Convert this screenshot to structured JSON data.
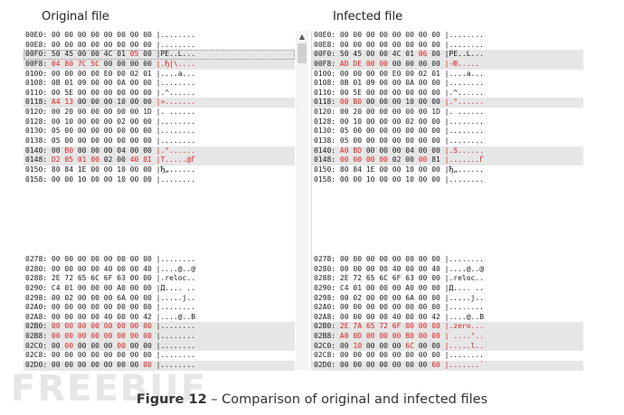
{
  "titles": {
    "original": "Original file",
    "infected": "Infected file"
  },
  "caption": {
    "figure": "Figure 12",
    "text": "Comparison of original and infected files"
  },
  "watermark": "FREEBUF",
  "original": {
    "top": [
      {
        "addr": "00E0:",
        "bytes": [
          "00",
          "00",
          "00",
          "00",
          "00",
          "00",
          "00",
          "00"
        ],
        "ascii": "|........",
        "red": [],
        "hl": false
      },
      {
        "addr": "00E8:",
        "bytes": [
          "00",
          "00",
          "00",
          "00",
          "00",
          "00",
          "00",
          "00"
        ],
        "ascii": "|........",
        "red": [],
        "hl": false
      },
      {
        "addr": "00F0:",
        "bytes": [
          "50",
          "45",
          "00",
          "00",
          "4C",
          "01",
          "05",
          "00"
        ],
        "ascii": "|PE..L...",
        "red": [
          6
        ],
        "hl": true,
        "outline": true
      },
      {
        "addr": "00F8:",
        "bytes": [
          "04",
          "80",
          "7C",
          "5C",
          "00",
          "00",
          "00",
          "00"
        ],
        "ascii": "|.Ђ|\\....",
        "red": [
          0,
          1,
          2,
          3
        ],
        "hl": true,
        "asciiRed": true
      },
      {
        "addr": "0100:",
        "bytes": [
          "00",
          "00",
          "00",
          "00",
          "E0",
          "00",
          "02",
          "01"
        ],
        "ascii": "|....a...",
        "red": [],
        "hl": false
      },
      {
        "addr": "0108:",
        "bytes": [
          "0B",
          "01",
          "09",
          "00",
          "00",
          "0A",
          "00",
          "00"
        ],
        "ascii": "|........",
        "red": [],
        "hl": false
      },
      {
        "addr": "0110:",
        "bytes": [
          "00",
          "5E",
          "00",
          "00",
          "00",
          "00",
          "00",
          "00"
        ],
        "ascii": "|.^......",
        "red": [],
        "hl": false
      },
      {
        "addr": "0118:",
        "bytes": [
          "A4",
          "13",
          "00",
          "00",
          "00",
          "10",
          "00",
          "00"
        ],
        "ascii": "|¤.......",
        "red": [
          0,
          1
        ],
        "hl": true,
        "asciiRed": true
      },
      {
        "addr": "0120:",
        "bytes": [
          "00",
          "20",
          "00",
          "00",
          "00",
          "00",
          "00",
          "1D"
        ],
        "ascii": "|. ......",
        "red": [],
        "hl": false
      },
      {
        "addr": "0128:",
        "bytes": [
          "00",
          "10",
          "00",
          "00",
          "00",
          "02",
          "00",
          "00"
        ],
        "ascii": "|........",
        "red": [],
        "hl": false
      },
      {
        "addr": "0130:",
        "bytes": [
          "05",
          "00",
          "00",
          "00",
          "00",
          "00",
          "00",
          "00"
        ],
        "ascii": "|........",
        "red": [],
        "hl": false
      },
      {
        "addr": "0138:",
        "bytes": [
          "05",
          "00",
          "00",
          "00",
          "00",
          "00",
          "00",
          "00"
        ],
        "ascii": "|........",
        "red": [],
        "hl": false
      },
      {
        "addr": "0140:",
        "bytes": [
          "00",
          "B0",
          "00",
          "00",
          "00",
          "04",
          "00",
          "00"
        ],
        "ascii": "|.°......",
        "red": [
          1
        ],
        "hl": true,
        "asciiRed": true
      },
      {
        "addr": "0148:",
        "bytes": [
          "D2",
          "05",
          "01",
          "00",
          "02",
          "00",
          "40",
          "81"
        ],
        "ascii": "|Т.....@Ѓ",
        "red": [
          0,
          1,
          2,
          3,
          6,
          7
        ],
        "hl": true,
        "asciiRed": true
      },
      {
        "addr": "0150:",
        "bytes": [
          "80",
          "84",
          "1E",
          "00",
          "00",
          "10",
          "00",
          "00"
        ],
        "ascii": "|Ђ„......",
        "red": [],
        "hl": false
      },
      {
        "addr": "0158:",
        "bytes": [
          "00",
          "00",
          "10",
          "00",
          "00",
          "10",
          "00",
          "00"
        ],
        "ascii": "|........",
        "red": [],
        "hl": false
      }
    ],
    "bottom": [
      {
        "addr": "0278:",
        "bytes": [
          "00",
          "00",
          "00",
          "00",
          "00",
          "00",
          "00",
          "00"
        ],
        "ascii": "|........",
        "red": [],
        "hl": false
      },
      {
        "addr": "0280:",
        "bytes": [
          "00",
          "00",
          "00",
          "00",
          "40",
          "00",
          "00",
          "40"
        ],
        "ascii": "|....@..@",
        "red": [],
        "hl": false
      },
      {
        "addr": "0288:",
        "bytes": [
          "2E",
          "72",
          "65",
          "6C",
          "6F",
          "63",
          "00",
          "00"
        ],
        "ascii": "|.reloc..",
        "red": [],
        "hl": false
      },
      {
        "addr": "0290:",
        "bytes": [
          "C4",
          "01",
          "00",
          "00",
          "00",
          "A0",
          "00",
          "00"
        ],
        "ascii": "|Д.... ..",
        "red": [],
        "hl": false
      },
      {
        "addr": "0298:",
        "bytes": [
          "00",
          "02",
          "00",
          "00",
          "00",
          "6A",
          "00",
          "00"
        ],
        "ascii": "|.....j..",
        "red": [],
        "hl": false
      },
      {
        "addr": "02A0:",
        "bytes": [
          "00",
          "00",
          "00",
          "00",
          "00",
          "00",
          "00",
          "00"
        ],
        "ascii": "|........",
        "red": [],
        "hl": false
      },
      {
        "addr": "02A8:",
        "bytes": [
          "00",
          "00",
          "00",
          "00",
          "40",
          "00",
          "00",
          "42"
        ],
        "ascii": "|....@..B",
        "red": [],
        "hl": false
      },
      {
        "addr": "02B0:",
        "bytes": [
          "00",
          "00",
          "00",
          "00",
          "00",
          "00",
          "00",
          "00"
        ],
        "ascii": "|........",
        "red": [
          0,
          1,
          2,
          3,
          4,
          5,
          6,
          7
        ],
        "hl": true
      },
      {
        "addr": "02B8:",
        "bytes": [
          "00",
          "00",
          "00",
          "00",
          "00",
          "00",
          "00",
          "00"
        ],
        "ascii": "|........",
        "red": [
          0,
          1,
          2,
          3,
          4,
          5,
          6,
          7
        ],
        "hl": true
      },
      {
        "addr": "02C0:",
        "bytes": [
          "00",
          "00",
          "00",
          "00",
          "00",
          "00",
          "00",
          "00"
        ],
        "ascii": "|........",
        "red": [
          1,
          5
        ],
        "hl": true
      },
      {
        "addr": "02C8:",
        "bytes": [
          "00",
          "00",
          "00",
          "00",
          "00",
          "00",
          "00",
          "00"
        ],
        "ascii": "|........",
        "red": [],
        "hl": false
      },
      {
        "addr": "02D0:",
        "bytes": [
          "00",
          "00",
          "00",
          "00",
          "00",
          "00",
          "00",
          "00"
        ],
        "ascii": "|........",
        "red": [
          7
        ],
        "hl": true
      }
    ]
  },
  "infected": {
    "top": [
      {
        "addr": "00E0:",
        "bytes": [
          "00",
          "00",
          "00",
          "00",
          "00",
          "00",
          "00",
          "00"
        ],
        "ascii": "|........",
        "red": [],
        "hl": false
      },
      {
        "addr": "00E8:",
        "bytes": [
          "00",
          "00",
          "00",
          "00",
          "00",
          "00",
          "00",
          "00"
        ],
        "ascii": "|........",
        "red": [],
        "hl": false
      },
      {
        "addr": "00F0:",
        "bytes": [
          "50",
          "45",
          "00",
          "00",
          "4C",
          "01",
          "06",
          "00"
        ],
        "ascii": "|PE..L...",
        "red": [
          6
        ],
        "hl": true
      },
      {
        "addr": "00F8:",
        "bytes": [
          "AD",
          "DE",
          "00",
          "00",
          "00",
          "00",
          "00",
          "00"
        ],
        "ascii": "|-Ю.....",
        "red": [
          0,
          1,
          2,
          3
        ],
        "hl": true,
        "asciiRed": true
      },
      {
        "addr": "0100:",
        "bytes": [
          "00",
          "00",
          "00",
          "00",
          "E0",
          "00",
          "02",
          "01"
        ],
        "ascii": "|....a...",
        "red": [],
        "hl": false
      },
      {
        "addr": "0108:",
        "bytes": [
          "0B",
          "01",
          "09",
          "00",
          "00",
          "0A",
          "00",
          "00"
        ],
        "ascii": "|........",
        "red": [],
        "hl": false
      },
      {
        "addr": "0110:",
        "bytes": [
          "00",
          "5E",
          "00",
          "00",
          "00",
          "00",
          "00",
          "00"
        ],
        "ascii": "|.^......",
        "red": [],
        "hl": false
      },
      {
        "addr": "0118:",
        "bytes": [
          "00",
          "B0",
          "00",
          "00",
          "00",
          "10",
          "00",
          "00"
        ],
        "ascii": "|.°......",
        "red": [
          0,
          1
        ],
        "hl": true,
        "asciiRed": true
      },
      {
        "addr": "0120:",
        "bytes": [
          "00",
          "20",
          "00",
          "00",
          "00",
          "00",
          "00",
          "1D"
        ],
        "ascii": "|. ......",
        "red": [],
        "hl": false
      },
      {
        "addr": "0128:",
        "bytes": [
          "00",
          "10",
          "00",
          "00",
          "00",
          "02",
          "00",
          "00"
        ],
        "ascii": "|........",
        "red": [],
        "hl": false
      },
      {
        "addr": "0130:",
        "bytes": [
          "05",
          "00",
          "00",
          "00",
          "00",
          "00",
          "00",
          "00"
        ],
        "ascii": "|........",
        "red": [],
        "hl": false
      },
      {
        "addr": "0138:",
        "bytes": [
          "05",
          "00",
          "00",
          "00",
          "00",
          "00",
          "00",
          "00"
        ],
        "ascii": "|........",
        "red": [],
        "hl": false
      },
      {
        "addr": "0140:",
        "bytes": [
          "A0",
          "BD",
          "00",
          "00",
          "00",
          "04",
          "00",
          "00"
        ],
        "ascii": "|.S......",
        "red": [
          0,
          1
        ],
        "hl": true,
        "asciiRed": true
      },
      {
        "addr": "0148:",
        "bytes": [
          "00",
          "00",
          "00",
          "00",
          "02",
          "00",
          "00",
          "81"
        ],
        "ascii": "|.......Ѓ",
        "red": [
          0,
          1,
          2,
          3,
          6
        ],
        "hl": true,
        "asciiRed": true
      },
      {
        "addr": "0150:",
        "bytes": [
          "80",
          "84",
          "1E",
          "00",
          "00",
          "10",
          "00",
          "00"
        ],
        "ascii": "|Ђ„......",
        "red": [],
        "hl": false
      },
      {
        "addr": "0158:",
        "bytes": [
          "00",
          "00",
          "10",
          "00",
          "00",
          "10",
          "00",
          "00"
        ],
        "ascii": "|........",
        "red": [],
        "hl": false
      }
    ],
    "bottom": [
      {
        "addr": "0278:",
        "bytes": [
          "00",
          "00",
          "00",
          "00",
          "00",
          "00",
          "00",
          "00"
        ],
        "ascii": "|........",
        "red": [],
        "hl": false
      },
      {
        "addr": "0280:",
        "bytes": [
          "00",
          "00",
          "00",
          "00",
          "40",
          "00",
          "00",
          "40"
        ],
        "ascii": "|....@..@",
        "red": [],
        "hl": false
      },
      {
        "addr": "0288:",
        "bytes": [
          "2E",
          "72",
          "65",
          "6C",
          "6F",
          "63",
          "00",
          "00"
        ],
        "ascii": "|.reloc..",
        "red": [],
        "hl": false
      },
      {
        "addr": "0290:",
        "bytes": [
          "C4",
          "01",
          "00",
          "00",
          "00",
          "A0",
          "00",
          "00"
        ],
        "ascii": "|Д.... ..",
        "red": [],
        "hl": false
      },
      {
        "addr": "0298:",
        "bytes": [
          "00",
          "02",
          "00",
          "00",
          "00",
          "6A",
          "00",
          "00"
        ],
        "ascii": "|.....j..",
        "red": [],
        "hl": false
      },
      {
        "addr": "02A0:",
        "bytes": [
          "00",
          "00",
          "00",
          "00",
          "00",
          "00",
          "00",
          "00"
        ],
        "ascii": "|........",
        "red": [],
        "hl": false
      },
      {
        "addr": "02A8:",
        "bytes": [
          "00",
          "00",
          "00",
          "00",
          "40",
          "00",
          "00",
          "42"
        ],
        "ascii": "|....@..B",
        "red": [],
        "hl": false
      },
      {
        "addr": "02B0:",
        "bytes": [
          "2E",
          "7A",
          "65",
          "72",
          "6F",
          "00",
          "00",
          "00"
        ],
        "ascii": "|.zero...",
        "red": [
          0,
          1,
          2,
          3,
          4,
          5,
          6,
          7
        ],
        "hl": true,
        "asciiRed": true
      },
      {
        "addr": "02B8:",
        "bytes": [
          "A0",
          "0D",
          "00",
          "00",
          "00",
          "B0",
          "00",
          "00"
        ],
        "ascii": "| ....°..",
        "red": [
          0,
          1,
          2,
          3,
          4,
          5,
          6,
          7
        ],
        "hl": true,
        "asciiRed": true
      },
      {
        "addr": "02C0:",
        "bytes": [
          "00",
          "10",
          "00",
          "00",
          "00",
          "6C",
          "00",
          "00"
        ],
        "ascii": "|.....l..",
        "red": [
          1,
          5
        ],
        "hl": true,
        "asciiRed": true
      },
      {
        "addr": "02C8:",
        "bytes": [
          "00",
          "00",
          "00",
          "00",
          "00",
          "00",
          "00",
          "00"
        ],
        "ascii": "|........",
        "red": [],
        "hl": false
      },
      {
        "addr": "02D0:",
        "bytes": [
          "00",
          "00",
          "00",
          "00",
          "00",
          "00",
          "00",
          "60"
        ],
        "ascii": "|.......`",
        "red": [
          7
        ],
        "hl": true,
        "asciiRed": true
      }
    ]
  },
  "colors": {
    "diff": "#e02020",
    "highlight": "#e6e6e6"
  }
}
